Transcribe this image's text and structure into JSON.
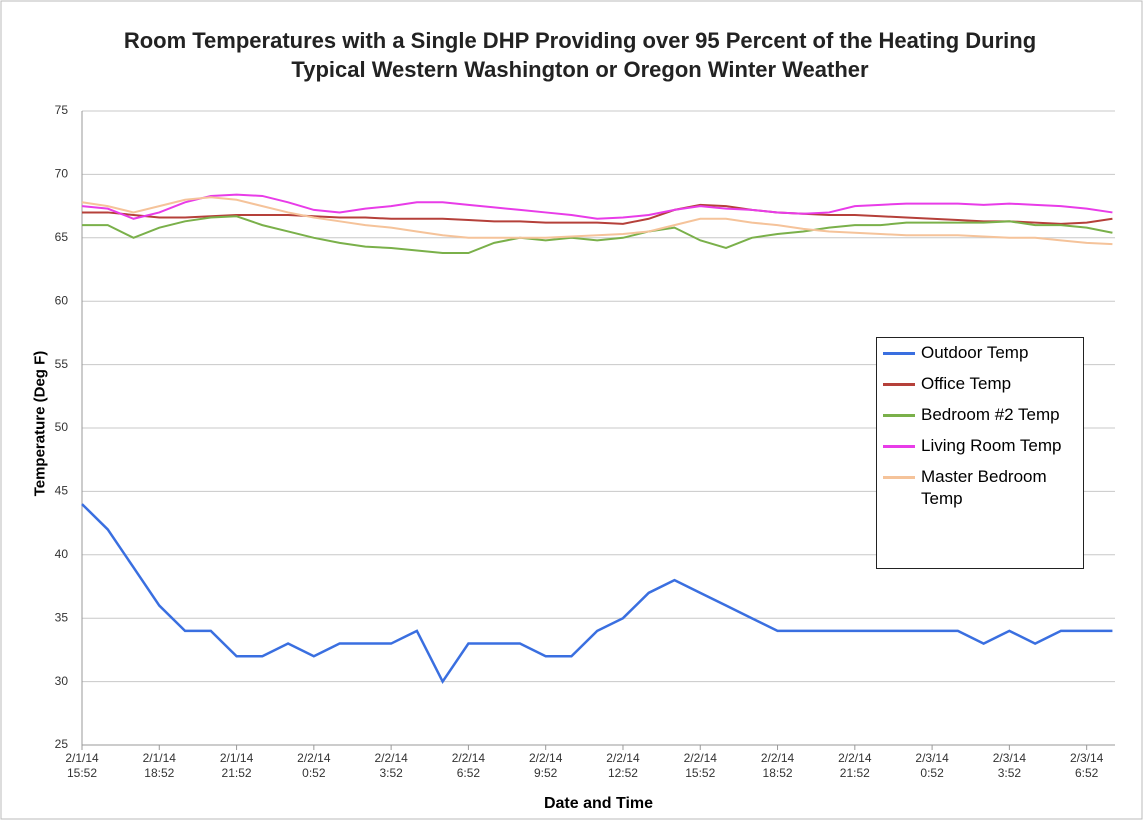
{
  "chart_data": {
    "type": "line",
    "title": "Room Temperatures with a Single DHP Providing over 95 Percent of the Heating During Typical Western Washington or Oregon Winter Weather",
    "xlabel": "Date and Time",
    "ylabel": "Temperature (Deg F)",
    "x": [
      0,
      1,
      2,
      3,
      4,
      5,
      6,
      7,
      8,
      9,
      10,
      11,
      12,
      13,
      14,
      15,
      16,
      17,
      18,
      19,
      20,
      21,
      22,
      23,
      24,
      25,
      26,
      27,
      28,
      29,
      30,
      31,
      32,
      33,
      34,
      35,
      36,
      37,
      38,
      39,
      40
    ],
    "xlim": [
      0,
      40.1
    ],
    "xticks": [
      {
        "value": 0,
        "label": "2/1/14 15:52"
      },
      {
        "value": 3,
        "label": "2/1/14 18:52"
      },
      {
        "value": 6,
        "label": "2/1/14 21:52"
      },
      {
        "value": 9,
        "label": "2/2/14 0:52"
      },
      {
        "value": 12,
        "label": "2/2/14 3:52"
      },
      {
        "value": 15,
        "label": "2/2/14 6:52"
      },
      {
        "value": 18,
        "label": "2/2/14 9:52"
      },
      {
        "value": 21,
        "label": "2/2/14 12:52"
      },
      {
        "value": 24,
        "label": "2/2/14 15:52"
      },
      {
        "value": 27,
        "label": "2/2/14 18:52"
      },
      {
        "value": 30,
        "label": "2/2/14 21:52"
      },
      {
        "value": 33,
        "label": "2/3/14 0:52"
      },
      {
        "value": 36,
        "label": "2/3/14 3:52"
      },
      {
        "value": 39,
        "label": "2/3/14 6:52"
      }
    ],
    "ylim": [
      25,
      75
    ],
    "yticks": [
      25,
      30,
      35,
      40,
      45,
      50,
      55,
      60,
      65,
      70,
      75
    ],
    "grid": true,
    "legend": "right",
    "series": [
      {
        "name": "Outdoor Temp",
        "color": "#3a6fe0",
        "values": [
          44,
          42,
          39,
          36,
          34,
          34,
          32,
          32,
          33,
          32,
          33,
          33,
          33,
          34,
          30,
          33,
          33,
          33,
          32,
          32,
          34,
          35,
          37,
          38,
          37,
          36,
          35,
          34,
          34,
          34,
          34,
          34,
          34,
          34,
          34,
          33,
          34,
          33,
          34,
          34,
          34
        ]
      },
      {
        "name": "Office Temp",
        "color": "#b5403a",
        "values": [
          67,
          67,
          66.8,
          66.6,
          66.6,
          66.7,
          66.8,
          66.8,
          66.8,
          66.7,
          66.6,
          66.6,
          66.5,
          66.5,
          66.5,
          66.4,
          66.3,
          66.3,
          66.2,
          66.2,
          66.2,
          66.1,
          66.5,
          67.2,
          67.6,
          67.5,
          67.2,
          67,
          66.9,
          66.8,
          66.8,
          66.7,
          66.6,
          66.5,
          66.4,
          66.3,
          66.3,
          66.2,
          66.1,
          66.2,
          66.5
        ]
      },
      {
        "name": "Bedroom #2 Temp",
        "color": "#7ab04a",
        "values": [
          66,
          66,
          65,
          65.8,
          66.3,
          66.6,
          66.7,
          66,
          65.5,
          65,
          64.6,
          64.3,
          64.2,
          64,
          63.8,
          63.8,
          64.6,
          65,
          64.8,
          65,
          64.8,
          65,
          65.5,
          65.8,
          64.8,
          64.2,
          65,
          65.3,
          65.5,
          65.8,
          66,
          66,
          66.2,
          66.2,
          66.2,
          66.2,
          66.3,
          66,
          66,
          65.8,
          65.4
        ]
      },
      {
        "name": "Living Room Temp",
        "color": "#e83ce8",
        "values": [
          67.5,
          67.3,
          66.5,
          67,
          67.8,
          68.3,
          68.4,
          68.3,
          67.8,
          67.2,
          67,
          67.3,
          67.5,
          67.8,
          67.8,
          67.6,
          67.4,
          67.2,
          67,
          66.8,
          66.5,
          66.6,
          66.8,
          67.2,
          67.5,
          67.3,
          67.2,
          67,
          66.9,
          67,
          67.5,
          67.6,
          67.7,
          67.7,
          67.7,
          67.6,
          67.7,
          67.6,
          67.5,
          67.3,
          67
        ]
      },
      {
        "name": "Master Bedroom Temp",
        "color": "#f5c39a",
        "values": [
          67.8,
          67.5,
          67,
          67.5,
          68,
          68.2,
          68,
          67.5,
          67,
          66.6,
          66.3,
          66,
          65.8,
          65.5,
          65.2,
          65,
          65,
          65,
          65,
          65.1,
          65.2,
          65.3,
          65.5,
          66,
          66.5,
          66.5,
          66.2,
          66,
          65.7,
          65.5,
          65.4,
          65.3,
          65.2,
          65.2,
          65.2,
          65.1,
          65,
          65,
          64.8,
          64.6,
          64.5
        ]
      }
    ]
  }
}
